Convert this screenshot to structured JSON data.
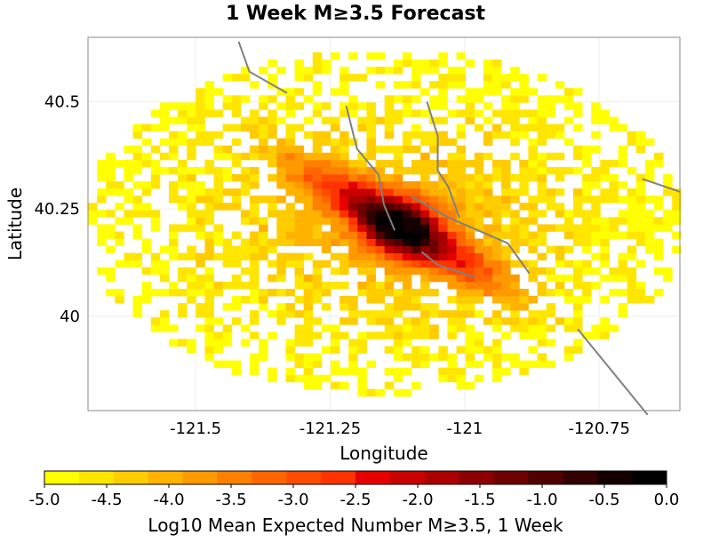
{
  "chart_data": {
    "type": "heatmap",
    "title": "1 Week M≥3.5 Forecast",
    "xlabel": "Longitude",
    "ylabel": "Latitude",
    "xlim": [
      -121.7,
      -120.6
    ],
    "ylim": [
      39.78,
      40.65
    ],
    "x_ticks": [
      -121.5,
      -121.25,
      -121.0,
      -120.75
    ],
    "x_tick_labels": [
      "-121.5",
      "-121.25",
      "-121",
      "-120.75"
    ],
    "y_ticks": [
      40.5,
      40.25,
      40.0
    ],
    "y_tick_labels": [
      "40.5",
      "40.25",
      "40"
    ],
    "grid": true,
    "grid_cell_deg": 0.0167,
    "field": {
      "description_values": "log10 mean expected number of M>=3.5 events per cell, 1 week",
      "peak_center": [
        -121.12,
        40.21
      ],
      "peak_value": -0.2,
      "background_value": -5.0,
      "footprint_center": [
        -121.15,
        40.22
      ],
      "footprint_radius_lon": 0.56,
      "footprint_radius_lat": 0.4
    },
    "faults": [
      [
        [
          -121.42,
          40.64
        ],
        [
          -121.4,
          40.57
        ],
        [
          -121.33,
          40.52
        ]
      ],
      [
        [
          -121.22,
          40.49
        ],
        [
          -121.2,
          40.39
        ],
        [
          -121.16,
          40.33
        ],
        [
          -121.15,
          40.26
        ],
        [
          -121.13,
          40.2
        ]
      ],
      [
        [
          -121.07,
          40.5
        ],
        [
          -121.05,
          40.42
        ],
        [
          -121.05,
          40.34
        ],
        [
          -121.03,
          40.3
        ],
        [
          -121.01,
          40.23
        ]
      ],
      [
        [
          -121.1,
          40.28
        ],
        [
          -121.03,
          40.23
        ],
        [
          -120.92,
          40.17
        ],
        [
          -120.88,
          40.1
        ]
      ],
      [
        [
          -121.08,
          40.15
        ],
        [
          -121.05,
          40.12
        ],
        [
          -120.98,
          40.09
        ]
      ],
      [
        [
          -120.67,
          40.32
        ],
        [
          -120.6,
          40.29
        ]
      ],
      [
        [
          -120.79,
          39.97
        ],
        [
          -120.66,
          39.77
        ]
      ]
    ],
    "colorbar": {
      "label": "Log10 Mean Expected Number M≥3.5, 1 Week",
      "min": -5.0,
      "max": 0.0,
      "tick_labels": [
        "-5.0",
        "-4.5",
        "-4.0",
        "-3.5",
        "-3.0",
        "-2.5",
        "-2.0",
        "-1.5",
        "-1.0",
        "-0.5",
        "0.0"
      ],
      "colors": [
        "#ffff00",
        "#ffe600",
        "#ffcc00",
        "#ffb200",
        "#ff9900",
        "#ff7f00",
        "#ff6600",
        "#ff4c00",
        "#ff3300",
        "#e60000",
        "#c80000",
        "#aa0000",
        "#8c0000",
        "#6e0000",
        "#500000",
        "#320000",
        "#140000",
        "#000000"
      ]
    }
  }
}
